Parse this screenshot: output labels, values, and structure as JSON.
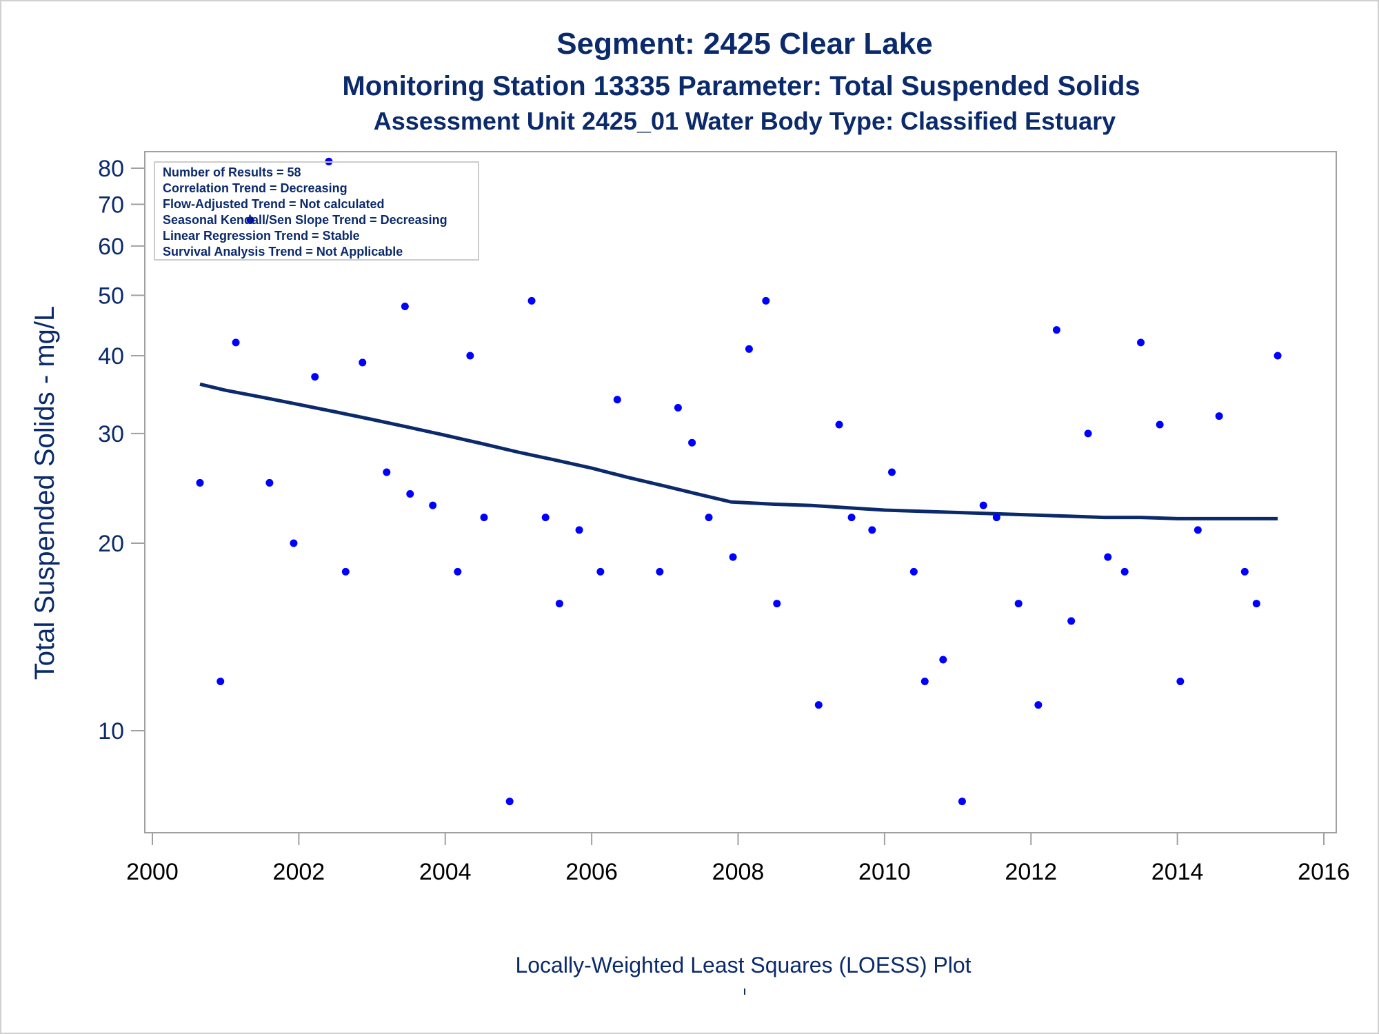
{
  "titles": {
    "line1": "Segment: 2425  Clear Lake",
    "line2": "Monitoring Station 13335 Parameter: Total Suspended Solids",
    "line3": "Assessment Unit 2425_01   Water Body Type: Classified Estuary"
  },
  "stats": [
    "Number of Results = 58",
    "Correlation Trend = Decreasing",
    "Flow-Adjusted Trend = Not calculated",
    "Seasonal Kendall/Sen Slope Trend = Decreasing",
    "Linear Regression Trend = Stable",
    "Survival Analysis Trend = Not Applicable"
  ],
  "footer": "Locally-Weighted Least Squares (LOESS) Plot",
  "colors": {
    "title": "#0b2a6b",
    "axis_text": "#0b2a6b",
    "points": "#0000ff",
    "loess_line": "#0b2a6b",
    "frame": "#a0a0a0"
  },
  "chart_data": {
    "type": "scatter",
    "title": "Segment: 2425  Clear Lake",
    "xlabel": "",
    "ylabel": "Total Suspended Solids - mg/L",
    "y_scale": "log",
    "xlim": [
      2000,
      2016
    ],
    "ylim": [
      7.5,
      85
    ],
    "x_ticks": [
      2000,
      2002,
      2004,
      2006,
      2008,
      2010,
      2012,
      2014,
      2016
    ],
    "y_ticks": [
      10,
      20,
      30,
      40,
      50,
      60,
      70,
      80
    ],
    "grid": false,
    "legend": "top-left stats box",
    "series": [
      {
        "kind": "points",
        "x": [
          2000.65,
          2000.93,
          2001.14,
          2001.34,
          2001.6,
          2001.93,
          2002.22,
          2002.41,
          2002.64,
          2002.87,
          2003.2,
          2003.45,
          2003.52,
          2003.83,
          2004.17,
          2004.34,
          2004.53,
          2004.88,
          2005.18,
          2005.37,
          2005.56,
          2005.83,
          2006.12,
          2006.35,
          2006.93,
          2007.18,
          2007.37,
          2007.6,
          2007.93,
          2008.15,
          2008.38,
          2008.53,
          2009.1,
          2009.38,
          2009.55,
          2009.83,
          2010.1,
          2010.4,
          2010.55,
          2010.8,
          2011.06,
          2011.35,
          2011.53,
          2011.83,
          2012.1,
          2012.35,
          2012.55,
          2012.78,
          2013.05,
          2013.28,
          2013.5,
          2013.76,
          2014.04,
          2014.28,
          2014.57,
          2014.92,
          2015.08,
          2015.37
        ],
        "y": [
          25,
          12,
          42,
          66,
          25,
          20,
          37,
          82,
          18,
          39,
          26,
          48,
          24,
          23,
          18,
          40,
          22,
          7.7,
          49,
          22,
          16,
          21,
          18,
          34,
          18,
          33,
          29,
          22,
          19,
          41,
          49,
          16,
          11,
          31,
          22,
          21,
          26,
          18,
          12,
          13,
          7.7,
          23,
          22,
          16,
          11,
          44,
          15,
          30,
          19,
          18,
          42,
          31,
          12,
          21,
          32,
          18,
          16,
          40
        ]
      },
      {
        "kind": "loess",
        "x": [
          2000.65,
          2001.0,
          2001.5,
          2002.0,
          2002.5,
          2003.0,
          2003.5,
          2004.0,
          2004.5,
          2005.0,
          2005.5,
          2006.0,
          2006.5,
          2007.0,
          2007.5,
          2007.9,
          2008.5,
          2009.0,
          2009.5,
          2010.0,
          2010.5,
          2011.0,
          2011.5,
          2012.0,
          2012.5,
          2013.0,
          2013.5,
          2014.0,
          2014.5,
          2015.0,
          2015.37
        ],
        "y": [
          36.0,
          35.2,
          34.3,
          33.4,
          32.5,
          31.6,
          30.7,
          29.8,
          28.9,
          28.0,
          27.2,
          26.4,
          25.5,
          24.7,
          23.9,
          23.3,
          23.1,
          23.0,
          22.8,
          22.6,
          22.5,
          22.4,
          22.3,
          22.2,
          22.1,
          22.0,
          22.0,
          21.9,
          21.9,
          21.9,
          21.9
        ]
      }
    ]
  }
}
